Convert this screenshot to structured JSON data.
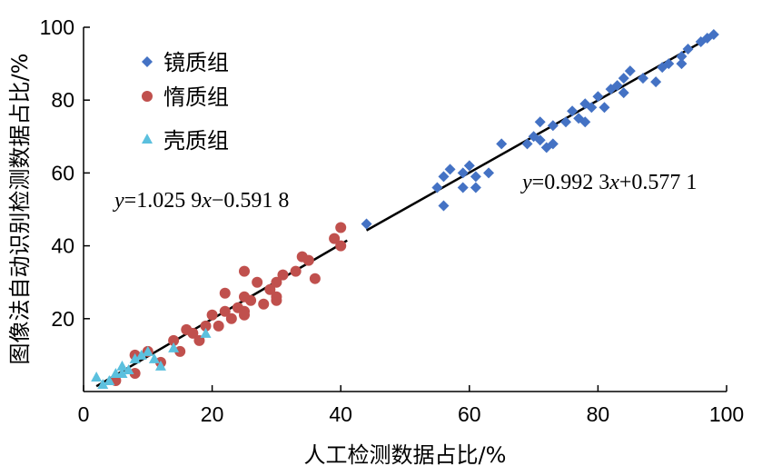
{
  "chart_data": {
    "type": "scatter",
    "xlabel": "人工检测数据占比/%",
    "ylabel": "图像法自动识别检测数据占比/%",
    "xlim": [
      0,
      100
    ],
    "ylim": [
      0,
      100
    ],
    "xticks": [
      "0",
      "20",
      "40",
      "60",
      "80",
      "100"
    ],
    "yticks": [
      "20",
      "40",
      "60",
      "80",
      "100"
    ],
    "grid": false,
    "legend_position": "top-left",
    "series": [
      {
        "name": "镜质组",
        "marker": "diamond",
        "color": "#4472C4",
        "points": [
          [
            44,
            46
          ],
          [
            55,
            56
          ],
          [
            56,
            59
          ],
          [
            56,
            51
          ],
          [
            57,
            61
          ],
          [
            59,
            56
          ],
          [
            59,
            60
          ],
          [
            60,
            62
          ],
          [
            61,
            56
          ],
          [
            61,
            59
          ],
          [
            63,
            60
          ],
          [
            65,
            68
          ],
          [
            69,
            68
          ],
          [
            70,
            70
          ],
          [
            71,
            69
          ],
          [
            71,
            74
          ],
          [
            72,
            67
          ],
          [
            73,
            68
          ],
          [
            73,
            73
          ],
          [
            75,
            74
          ],
          [
            76,
            77
          ],
          [
            77,
            75
          ],
          [
            78,
            74
          ],
          [
            78,
            79
          ],
          [
            79,
            78
          ],
          [
            80,
            81
          ],
          [
            81,
            78
          ],
          [
            82,
            83
          ],
          [
            83,
            84
          ],
          [
            84,
            86
          ],
          [
            84,
            82
          ],
          [
            85,
            88
          ],
          [
            87,
            86
          ],
          [
            89,
            85
          ],
          [
            90,
            89
          ],
          [
            91,
            90
          ],
          [
            93,
            92
          ],
          [
            93,
            90
          ],
          [
            94,
            94
          ],
          [
            96,
            96
          ],
          [
            97,
            97
          ],
          [
            98,
            98
          ]
        ]
      },
      {
        "name": "惰质组",
        "marker": "circle",
        "color": "#C0504D",
        "points": [
          [
            5,
            3
          ],
          [
            8,
            10
          ],
          [
            8,
            5
          ],
          [
            10,
            11
          ],
          [
            12,
            8
          ],
          [
            14,
            14
          ],
          [
            15,
            11
          ],
          [
            16,
            17
          ],
          [
            17,
            16
          ],
          [
            18,
            14
          ],
          [
            19,
            18
          ],
          [
            20,
            21
          ],
          [
            21,
            18
          ],
          [
            22,
            22
          ],
          [
            22,
            27
          ],
          [
            23,
            20
          ],
          [
            24,
            23
          ],
          [
            25,
            26
          ],
          [
            25,
            22
          ],
          [
            25,
            21
          ],
          [
            25,
            33
          ],
          [
            26,
            25
          ],
          [
            27,
            30
          ],
          [
            28,
            24
          ],
          [
            29,
            28
          ],
          [
            30,
            30
          ],
          [
            30,
            25
          ],
          [
            30,
            26
          ],
          [
            31,
            32
          ],
          [
            33,
            33
          ],
          [
            34,
            37
          ],
          [
            35,
            36
          ],
          [
            36,
            31
          ],
          [
            39,
            42
          ],
          [
            40,
            45
          ],
          [
            40,
            40
          ]
        ]
      },
      {
        "name": "壳质组",
        "marker": "triangle",
        "color": "#5BC0DE",
        "points": [
          [
            2,
            4
          ],
          [
            3,
            2
          ],
          [
            4,
            3
          ],
          [
            5,
            5
          ],
          [
            6,
            7
          ],
          [
            6,
            5
          ],
          [
            7,
            6
          ],
          [
            8,
            9
          ],
          [
            9,
            10
          ],
          [
            10,
            11
          ],
          [
            11,
            9
          ],
          [
            12,
            7
          ],
          [
            14,
            12
          ],
          [
            19,
            16
          ]
        ]
      }
    ],
    "fit_lines": [
      {
        "label": "y=1.025 9x−0.591 8",
        "slope": 1.0259,
        "intercept": -0.5918,
        "x_range": [
          2,
          41
        ]
      },
      {
        "label": "y=0.992 3x+0.577 1",
        "slope": 0.9923,
        "intercept": 0.5771,
        "x_range": [
          44,
          98
        ]
      }
    ]
  }
}
